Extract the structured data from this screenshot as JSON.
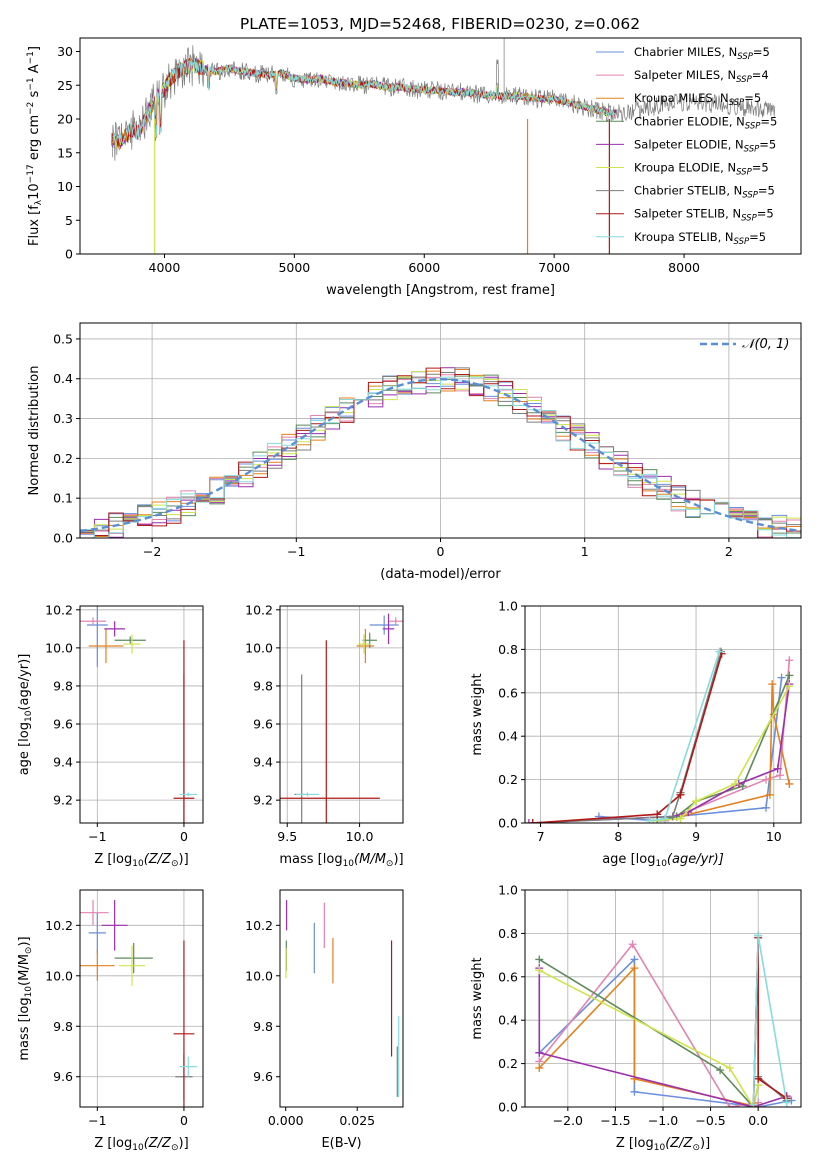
{
  "figure": {
    "title": "PLATE=1053, MJD=52468, FIBERID=0230, z=0.062"
  },
  "colors": {
    "Chabrier MILES": "#6a8fdb",
    "Salpeter MILES": "#e383b0",
    "Kroupa MILES": "#e3801e",
    "Chabrier ELODIE": "#5c8a5c",
    "Salpeter ELODIE": "#9b2fae",
    "Kroupa ELODIE": "#cfe34a",
    "Chabrier STELIB": "#7d7d7d",
    "Salpeter STELIB": "#b01818",
    "Kroupa STELIB": "#86dcdc"
  },
  "chart_data": [
    {
      "id": "spectrum",
      "type": "line",
      "xlabel": "wavelength [Angstrom, rest frame]",
      "ylabel_parts": [
        "Flux [f",
        "λ",
        "10",
        "−17",
        " erg cm",
        "−2",
        " s",
        "−1",
        " A",
        "−1",
        "]"
      ],
      "xlim": [
        3350,
        8900
      ],
      "ylim": [
        0,
        32
      ],
      "xticks": [
        4000,
        5000,
        6000,
        7000,
        8000
      ],
      "yticks": [
        0,
        5,
        10,
        15,
        20,
        25,
        30
      ],
      "grid": false,
      "legend_position": "top-right",
      "continuum": {
        "x": [
          3600,
          3650,
          3700,
          3750,
          3800,
          3850,
          3900,
          3950,
          4000,
          4050,
          4100,
          4150,
          4200,
          4300,
          4400,
          4500,
          4600,
          4700,
          4800,
          4900,
          5000,
          5100,
          5200,
          5300,
          5400,
          5500,
          5600,
          5700,
          5800,
          5900,
          6000,
          6100,
          6200,
          6300,
          6400,
          6500,
          6600,
          6700,
          6800,
          6900,
          7000,
          7100,
          7200,
          7300,
          7400,
          7500,
          7600,
          7700,
          7800,
          7900,
          8000,
          8100,
          8200,
          8300,
          8400,
          8500,
          8600,
          8700
        ],
        "y": [
          17.0,
          16.5,
          17.5,
          18.5,
          18.0,
          20.0,
          22.0,
          23.5,
          24.5,
          26.0,
          27.0,
          27.5,
          28.0,
          27.5,
          27.0,
          27.5,
          27.0,
          26.8,
          26.5,
          26.8,
          26.0,
          25.8,
          26.0,
          25.5,
          25.3,
          25.0,
          25.2,
          24.8,
          24.7,
          24.5,
          24.3,
          24.2,
          24.0,
          24.0,
          23.7,
          23.5,
          23.4,
          23.5,
          23.2,
          23.0,
          23.0,
          22.5,
          22.0,
          21.5,
          21.0,
          20.8,
          21.2,
          21.5,
          22.0,
          22.3,
          22.5,
          22.5,
          22.3,
          22.0,
          21.8,
          21.5,
          21.3,
          21.0
        ]
      },
      "series": [
        {
          "name": "Chabrier MILES",
          "n": "5"
        },
        {
          "name": "Salpeter MILES",
          "n": "4"
        },
        {
          "name": "Kroupa MILES",
          "n": "5"
        },
        {
          "name": "Chabrier ELODIE",
          "n": "5"
        },
        {
          "name": "Salpeter ELODIE",
          "n": "5"
        },
        {
          "name": "Kroupa ELODIE",
          "n": "5"
        },
        {
          "name": "Chabrier STELIB",
          "n": "5"
        },
        {
          "name": "Salpeter STELIB",
          "n": "5"
        },
        {
          "name": "Kroupa STELIB",
          "n": "5"
        }
      ],
      "legend_sub": "SSP"
    },
    {
      "id": "residuals",
      "type": "line",
      "xlabel": "(data-model)/error",
      "ylabel": "Normed distribution",
      "xlim": [
        -2.5,
        2.5
      ],
      "ylim": [
        0,
        0.54
      ],
      "xticks": [
        -2,
        -1,
        0,
        1,
        2
      ],
      "xticklabels": [
        "−2",
        "−1",
        "0",
        "1",
        "2"
      ],
      "yticks": [
        0,
        0.1,
        0.2,
        0.3,
        0.4,
        0.5
      ],
      "yticklabels": [
        "0.0",
        "0.1",
        "0.2",
        "0.3",
        "0.4",
        "0.5"
      ],
      "grid": true,
      "legend_position": "top-right",
      "legend_label": "𝒩(0, 1)",
      "bin_width": 0.1,
      "bin_start": -2.5
    },
    {
      "id": "age-vs-z",
      "type": "scatter",
      "xlabel_parts": [
        "Z [log",
        "10",
        "(Z/Z",
        "⊙",
        ")]"
      ],
      "ylabel_parts": [
        "age  [log",
        "10",
        "(age/yr)]"
      ],
      "xlim": [
        -1.2,
        0.22
      ],
      "ylim": [
        9.08,
        10.22
      ],
      "xticks": [
        -1,
        0
      ],
      "xticklabels": [
        "−1",
        "0"
      ],
      "yticks": [
        9.2,
        9.4,
        9.6,
        9.8,
        10.0,
        10.2
      ],
      "yticklabels": [
        "9.2",
        "9.4",
        "9.6",
        "9.8",
        "10.0",
        "10.2"
      ],
      "grid": true,
      "points": [
        {
          "series": "Chabrier MILES",
          "x": -1.0,
          "y": 10.12,
          "xerr": 0.12,
          "yerr": 0.22
        },
        {
          "series": "Salpeter MILES",
          "x": -1.05,
          "y": 10.14,
          "xerr": 0.15,
          "yerr": 0.02
        },
        {
          "series": "Kroupa MILES",
          "x": -0.9,
          "y": 10.01,
          "xerr": 0.2,
          "yerr": 0.09
        },
        {
          "series": "Chabrier ELODIE",
          "x": -0.62,
          "y": 10.04,
          "xerr": 0.18,
          "yerr": 0.02
        },
        {
          "series": "Salpeter ELODIE",
          "x": -0.8,
          "y": 10.1,
          "xerr": 0.12,
          "yerr": 0.04
        },
        {
          "series": "Kroupa ELODIE",
          "x": -0.6,
          "y": 10.02,
          "xerr": 0.1,
          "yerr": 0.05
        },
        {
          "series": "Chabrier STELIB",
          "x": 0.0,
          "y": 9.23,
          "xerr": 0.01,
          "yerr": 0.63
        },
        {
          "series": "Salpeter STELIB",
          "x": 0.0,
          "y": 9.21,
          "xerr": 0.12,
          "yerr": 0.83
        },
        {
          "series": "Kroupa STELIB",
          "x": 0.05,
          "y": 9.23,
          "xerr": 0.1,
          "yerr": 0.01
        }
      ]
    },
    {
      "id": "age-vs-mass",
      "type": "scatter",
      "xlabel_parts": [
        "mass [log",
        "10",
        "(M/M",
        "⊙",
        ")]"
      ],
      "xlim": [
        9.45,
        10.3
      ],
      "ylim": [
        9.08,
        10.22
      ],
      "xticks": [
        9.5,
        10.0
      ],
      "xticklabels": [
        "9.5",
        "10.0"
      ],
      "yticks": [
        9.2,
        9.4,
        9.6,
        9.8,
        10.0,
        10.2
      ],
      "yticklabels": [
        "9.2",
        "9.4",
        "9.6",
        "9.8",
        "10.0",
        "10.2"
      ],
      "grid": true,
      "points": [
        {
          "series": "Chabrier MILES",
          "x": 10.17,
          "y": 10.12,
          "xerr": 0.1,
          "yerr": 0.05
        },
        {
          "series": "Salpeter MILES",
          "x": 10.25,
          "y": 10.14,
          "xerr": 0.05,
          "yerr": 0.02
        },
        {
          "series": "Kroupa MILES",
          "x": 10.04,
          "y": 10.01,
          "xerr": 0.06,
          "yerr": 0.09
        },
        {
          "series": "Chabrier ELODIE",
          "x": 10.07,
          "y": 10.04,
          "xerr": 0.05,
          "yerr": 0.04
        },
        {
          "series": "Salpeter ELODIE",
          "x": 10.2,
          "y": 10.1,
          "xerr": 0.04,
          "yerr": 0.08
        },
        {
          "series": "Kroupa ELODIE",
          "x": 10.03,
          "y": 10.02,
          "xerr": 0.04,
          "yerr": 0.05
        },
        {
          "series": "Chabrier STELIB",
          "x": 9.6,
          "y": 9.23,
          "xerr": 0.05,
          "yerr": 0.63
        },
        {
          "series": "Salpeter STELIB",
          "x": 9.77,
          "y": 9.21,
          "xerr": 0.37,
          "yerr": 0.83
        },
        {
          "series": "Kroupa STELIB",
          "x": 9.64,
          "y": 9.23,
          "xerr": 0.08,
          "yerr": 0.01
        }
      ]
    },
    {
      "id": "weight-vs-age",
      "type": "line",
      "xlabel_parts": [
        "age  [log",
        "10",
        "(age/yr)]"
      ],
      "ylabel": "mass weight",
      "xlim": [
        6.8,
        10.35
      ],
      "ylim": [
        0,
        1.0
      ],
      "xticks": [
        7,
        8,
        9,
        10
      ],
      "xticklabels": [
        "7",
        "8",
        "9",
        "10"
      ],
      "yticks": [
        0,
        0.2,
        0.4,
        0.6,
        0.8,
        1.0
      ],
      "yticklabels": [
        "0.0",
        "0.2",
        "0.4",
        "0.6",
        "0.8",
        "1.0"
      ],
      "grid": true,
      "series": [
        {
          "name": "Chabrier MILES",
          "x": [
            7.75,
            8.5,
            8.75,
            9.9,
            10.1
          ],
          "y": [
            0.03,
            0.01,
            0.03,
            0.07,
            0.67
          ]
        },
        {
          "name": "Salpeter MILES",
          "x": [
            8.6,
            9.9,
            10.08,
            10.2
          ],
          "y": [
            0.01,
            0.2,
            0.22,
            0.75
          ]
        },
        {
          "name": "Kroupa MILES",
          "x": [
            8.8,
            9.95,
            9.98,
            10.0,
            10.2
          ],
          "y": [
            0.03,
            0.13,
            0.64,
            0.5,
            0.18
          ]
        },
        {
          "name": "Chabrier ELODIE",
          "x": [
            8.5,
            8.75,
            9.0,
            9.6,
            10.2
          ],
          "y": [
            0.01,
            0.03,
            0.1,
            0.17,
            0.68
          ]
        },
        {
          "name": "Salpeter ELODIE",
          "x": [
            6.85,
            8.7,
            8.9,
            9.55,
            10.05,
            10.2
          ],
          "y": [
            0.0,
            0.03,
            0.05,
            0.18,
            0.25,
            0.64
          ]
        },
        {
          "name": "Kroupa ELODIE",
          "x": [
            8.45,
            8.8,
            9.0,
            9.5,
            10.2
          ],
          "y": [
            0.01,
            0.02,
            0.1,
            0.18,
            0.63
          ]
        },
        {
          "name": "Chabrier STELIB",
          "x": [
            6.9,
            8.7,
            8.8,
            9.32
          ],
          "y": [
            0.0,
            0.03,
            0.14,
            0.79
          ]
        },
        {
          "name": "Salpeter STELIB",
          "x": [
            6.9,
            8.5,
            8.8,
            9.33
          ],
          "y": [
            0.0,
            0.04,
            0.13,
            0.78
          ]
        },
        {
          "name": "Kroupa STELIB",
          "x": [
            8.4,
            8.6,
            9.3
          ],
          "y": [
            0.01,
            0.02,
            0.79
          ]
        }
      ]
    },
    {
      "id": "mass-vs-z",
      "type": "scatter",
      "xlabel_parts": [
        "Z [log",
        "10",
        "(Z/Z",
        "⊙",
        ")]"
      ],
      "ylabel_parts": [
        "mass [log",
        "10",
        "(M/M",
        "⊙",
        ")]"
      ],
      "xlim": [
        -1.2,
        0.22
      ],
      "ylim": [
        9.48,
        10.34
      ],
      "xticks": [
        -1,
        0
      ],
      "xticklabels": [
        "−1",
        "0"
      ],
      "yticks": [
        9.6,
        9.8,
        10.0,
        10.2
      ],
      "yticklabels": [
        "9.6",
        "9.8",
        "10.0",
        "10.2"
      ],
      "grid": true,
      "points": [
        {
          "series": "Chabrier MILES",
          "x": -1.0,
          "y": 10.17,
          "xerr": 0.1,
          "yerr": 0.08
        },
        {
          "series": "Salpeter MILES",
          "x": -1.05,
          "y": 10.25,
          "xerr": 0.18,
          "yerr": 0.05
        },
        {
          "series": "Kroupa MILES",
          "x": -1.0,
          "y": 10.04,
          "xerr": 0.2,
          "yerr": 0.06
        },
        {
          "series": "Chabrier ELODIE",
          "x": -0.58,
          "y": 10.07,
          "xerr": 0.22,
          "yerr": 0.06
        },
        {
          "series": "Salpeter ELODIE",
          "x": -0.8,
          "y": 10.2,
          "xerr": 0.15,
          "yerr": 0.1
        },
        {
          "series": "Kroupa ELODIE",
          "x": -0.6,
          "y": 10.04,
          "xerr": 0.15,
          "yerr": 0.08
        },
        {
          "series": "Chabrier STELIB",
          "x": 0.0,
          "y": 9.6,
          "xerr": 0.1,
          "yerr": 0.09
        },
        {
          "series": "Salpeter STELIB",
          "x": 0.0,
          "y": 9.77,
          "xerr": 0.12,
          "yerr": 0.37
        },
        {
          "series": "Kroupa STELIB",
          "x": 0.05,
          "y": 9.64,
          "xerr": 0.1,
          "yerr": 0.04
        }
      ]
    },
    {
      "id": "mass-vs-ebv",
      "type": "scatter",
      "xlabel": "E(B-V)",
      "xlim": [
        -0.002,
        0.041
      ],
      "ylim": [
        9.48,
        10.34
      ],
      "xticks": [
        0.0,
        0.025
      ],
      "xticklabels": [
        "0.000",
        "0.025"
      ],
      "yticks": [
        9.6,
        9.8,
        10.0,
        10.2
      ],
      "yticklabels": [
        "9.6",
        "9.8",
        "10.0",
        "10.2"
      ],
      "grid": false,
      "points": [
        {
          "series": "Chabrier MILES",
          "x": 0.01,
          "y": 10.11,
          "xerr": 0,
          "yerr": 0.1
        },
        {
          "series": "Salpeter MILES",
          "x": 0.0135,
          "y": 10.2,
          "xerr": 0,
          "yerr": 0.09
        },
        {
          "series": "Kroupa MILES",
          "x": 0.0165,
          "y": 10.06,
          "xerr": 0,
          "yerr": 0.09
        },
        {
          "series": "Chabrier ELODIE",
          "x": 0.0002,
          "y": 10.08,
          "xerr": 0,
          "yerr": 0.06
        },
        {
          "series": "Salpeter ELODIE",
          "x": 0.0003,
          "y": 10.24,
          "xerr": 0,
          "yerr": 0.06
        },
        {
          "series": "Kroupa ELODIE",
          "x": 0.0001,
          "y": 10.05,
          "xerr": 0,
          "yerr": 0.06
        },
        {
          "series": "Chabrier STELIB",
          "x": 0.039,
          "y": 9.62,
          "xerr": 0,
          "yerr": 0.1
        },
        {
          "series": "Salpeter STELIB",
          "x": 0.037,
          "y": 9.91,
          "xerr": 0,
          "yerr": 0.23
        },
        {
          "series": "Kroupa STELIB",
          "x": 0.0395,
          "y": 9.68,
          "xerr": 0,
          "yerr": 0.16
        }
      ]
    },
    {
      "id": "weight-vs-z",
      "type": "line",
      "xlabel_parts": [
        "Z [log",
        "10",
        "(Z/Z",
        "⊙",
        ")]"
      ],
      "ylabel": "mass weight",
      "xlim": [
        -2.45,
        0.45
      ],
      "ylim": [
        0,
        1.0
      ],
      "xticks": [
        -2.0,
        -1.5,
        -1.0,
        -0.5,
        0.0
      ],
      "xticklabels": [
        "−2.0",
        "−1.5",
        "−1.0",
        "−0.5",
        "0.0"
      ],
      "yticks": [
        0,
        0.2,
        0.4,
        0.6,
        0.8,
        1.0
      ],
      "yticklabels": [
        "0.0",
        "0.2",
        "0.4",
        "0.6",
        "0.8",
        "1.0"
      ],
      "grid": true,
      "series": [
        {
          "name": "Chabrier MILES",
          "x": [
            -2.3,
            -1.3,
            -1.3,
            0.0,
            0.35
          ],
          "y": [
            0.25,
            0.68,
            0.07,
            0.0,
            0.03
          ]
        },
        {
          "name": "Salpeter MILES",
          "x": [
            -2.3,
            -1.32,
            -0.3,
            0.0
          ],
          "y": [
            0.21,
            0.75,
            0.0,
            0.02
          ]
        },
        {
          "name": "Kroupa MILES",
          "x": [
            -2.3,
            -1.3,
            -1.3,
            0.0
          ],
          "y": [
            0.18,
            0.64,
            0.13,
            0.0
          ]
        },
        {
          "name": "Chabrier ELODIE",
          "x": [
            -2.3,
            -0.4,
            -0.05,
            0.0
          ],
          "y": [
            0.68,
            0.17,
            0.0,
            0.1
          ]
        },
        {
          "name": "Salpeter ELODIE",
          "x": [
            -2.3,
            -2.3,
            -0.05,
            0.3
          ],
          "y": [
            0.64,
            0.25,
            0.0,
            0.05
          ]
        },
        {
          "name": "Kroupa ELODIE",
          "x": [
            -2.3,
            -0.3,
            -0.05,
            0.0
          ],
          "y": [
            0.63,
            0.18,
            0.0,
            0.1
          ]
        },
        {
          "name": "Chabrier STELIB",
          "x": [
            -0.05,
            0.0,
            0.0,
            0.3
          ],
          "y": [
            0.0,
            0.79,
            0.14,
            0.03
          ]
        },
        {
          "name": "Salpeter STELIB",
          "x": [
            -0.05,
            0.0,
            0.0,
            0.3
          ],
          "y": [
            0.0,
            0.78,
            0.13,
            0.04
          ]
        },
        {
          "name": "Kroupa STELIB",
          "x": [
            -0.05,
            0.0,
            0.3
          ],
          "y": [
            0.01,
            0.79,
            0.02
          ]
        }
      ]
    }
  ]
}
